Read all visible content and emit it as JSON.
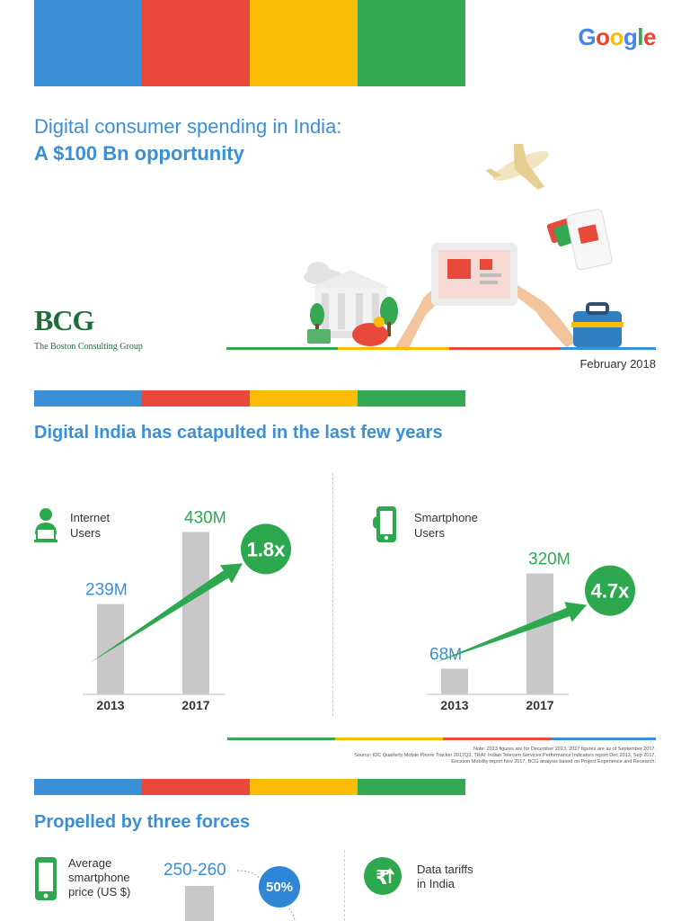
{
  "colors": {
    "blue": "#3a8fd6",
    "red": "#e9493a",
    "yellow": "#fbbc05",
    "green": "#34a853",
    "bar": "#c8c8c8",
    "arrow": "#2ea84f"
  },
  "google_logo": [
    "G",
    "o",
    "o",
    "g",
    "l",
    "e"
  ],
  "header": {
    "title_line1": "Digital consumer spending in India:",
    "title_line2": "A $100 Bn opportunity",
    "bcg_logo": "BCG",
    "bcg_name": "The Boston Consulting Group",
    "date": "February 2018"
  },
  "section1": {
    "title": "Digital India has catapulted in the last few years"
  },
  "chart_data": [
    {
      "type": "bar",
      "label_line1": "Internet",
      "label_line2": "Users",
      "icon": "user-at-computer-icon",
      "categories": [
        "2013",
        "2017"
      ],
      "values": [
        239,
        430
      ],
      "unit": "M",
      "value_labels": [
        "239",
        "430"
      ],
      "growth": "1.8x"
    },
    {
      "type": "bar",
      "label_line1": "Smartphone",
      "label_line2": "Users",
      "icon": "smartphone-icon",
      "categories": [
        "2013",
        "2017"
      ],
      "values": [
        68,
        320
      ],
      "unit": "M",
      "value_labels": [
        "68",
        "320"
      ],
      "growth": "4.7x"
    }
  ],
  "notes": [
    "Note: 2013 figures are for December 2013, 2017 figures are as of September 2017.",
    "Source: IDC Quarterly Mobile Phone Tracker 2017Q3, TRAI: Indian Telecom Services Performance Indicators report Dec 2013, Sep 2017,",
    "Ericsson Mobility report Nov 2017, BCG analysis based on Project Experience and Research."
  ],
  "section2": {
    "title": "Propelled by three forces",
    "force1": {
      "line1": "Average",
      "line2": "smartphone",
      "line3": "price (US $)",
      "value": "250-260",
      "change": "50%",
      "icon": "smartphone-icon"
    },
    "force2": {
      "line1": "Data tariffs",
      "line2": "in India",
      "icon": "rupee-icon"
    }
  }
}
